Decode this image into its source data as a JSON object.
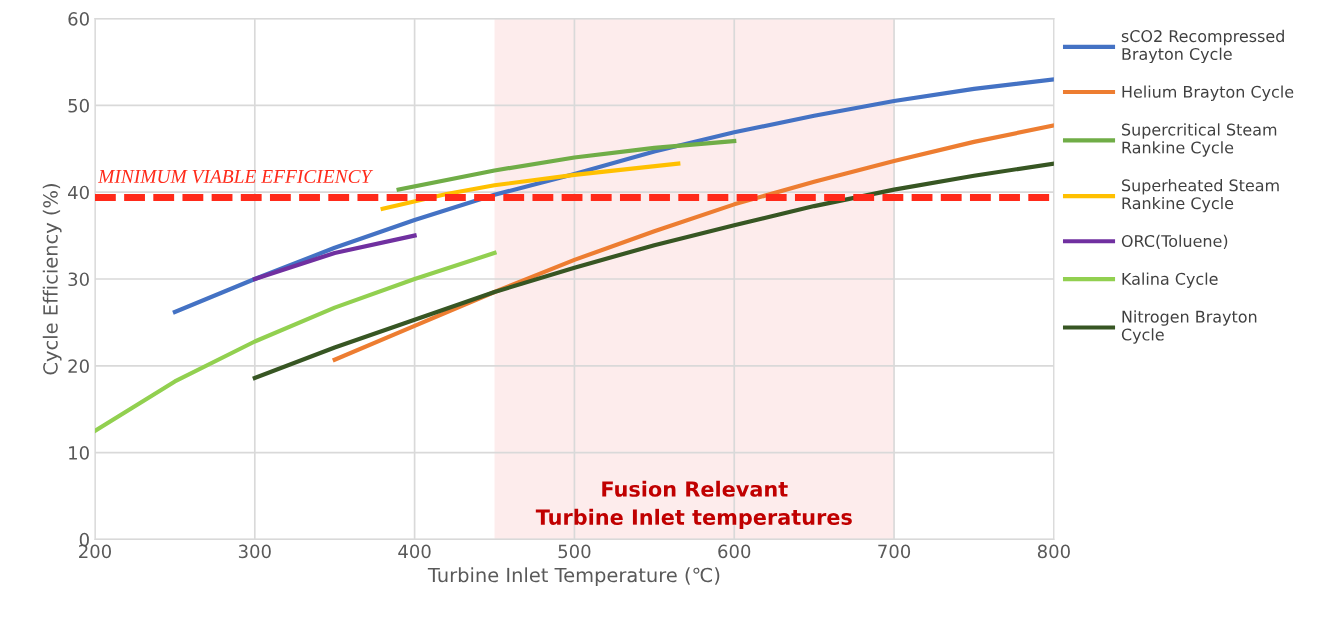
{
  "chart_data": {
    "type": "line",
    "xlabel": "Turbine Inlet Temperature (℃)",
    "ylabel": "Cycle Efficiency (%)",
    "xlim": [
      200,
      800
    ],
    "xticks": [
      200,
      300,
      400,
      500,
      600,
      700,
      800
    ],
    "ylim": [
      0,
      60
    ],
    "yticks": [
      0,
      10,
      20,
      30,
      40,
      50,
      60
    ],
    "grid": true,
    "legend": "right",
    "marker": "none",
    "line_style": "solid",
    "series": [
      {
        "name": "sCO2 Recompressed Brayton Cycle",
        "color": "#4472c4",
        "x": [
          250,
          300,
          350,
          400,
          450,
          500,
          550,
          600,
          650,
          700,
          750,
          800
        ],
        "values": [
          26.2,
          30.0,
          33.6,
          36.8,
          39.7,
          42.1,
          44.7,
          46.9,
          48.8,
          50.5,
          51.9,
          53.0
        ]
      },
      {
        "name": "Helium Brayton Cycle",
        "color": "#ed7d31",
        "x": [
          350,
          400,
          450,
          500,
          550,
          600,
          650,
          700,
          750,
          800
        ],
        "values": [
          20.7,
          24.6,
          28.5,
          32.2,
          35.5,
          38.6,
          41.2,
          43.6,
          45.8,
          47.7
        ]
      },
      {
        "name": "Supercritical Steam Rankine Cycle",
        "color": "#70ad47",
        "x": [
          390,
          450,
          500,
          550,
          600
        ],
        "values": [
          40.3,
          42.5,
          44.0,
          45.1,
          45.9
        ]
      },
      {
        "name": "Superheated Steam Rankine Cycle",
        "color": "#ffc000",
        "x": [
          380,
          420,
          450,
          500,
          565
        ],
        "values": [
          38.1,
          39.8,
          40.8,
          42.0,
          43.3
        ]
      },
      {
        "name": "ORC(Toluene)",
        "color": "#7030a0",
        "x": [
          300,
          350,
          400
        ],
        "values": [
          30.0,
          33.0,
          35.0
        ]
      },
      {
        "name": "Kalina Cycle",
        "color": "#92d050",
        "x": [
          200,
          250,
          300,
          350,
          400,
          450
        ],
        "values": [
          12.5,
          18.2,
          22.8,
          26.7,
          30.0,
          33.0
        ]
      },
      {
        "name": "Nitrogen Brayton Cycle",
        "color": "#375623",
        "x": [
          300,
          350,
          400,
          450,
          500,
          550,
          600,
          650,
          700,
          750,
          800
        ],
        "values": [
          18.6,
          22.1,
          25.3,
          28.5,
          31.3,
          33.9,
          36.2,
          38.4,
          40.3,
          41.9,
          43.3
        ]
      }
    ],
    "ref_lines": [
      {
        "axis": "y",
        "value": 39.4,
        "label": "MINIMUM VIABLE EFFICIENCY",
        "color": "#ff2a1a",
        "line_style": "dashed"
      }
    ],
    "bands": [
      {
        "axis": "x",
        "from": 450,
        "to": 700,
        "label": "Fusion Relevant\nTurbine Inlet temperatures",
        "color": "#fdecec"
      }
    ]
  }
}
